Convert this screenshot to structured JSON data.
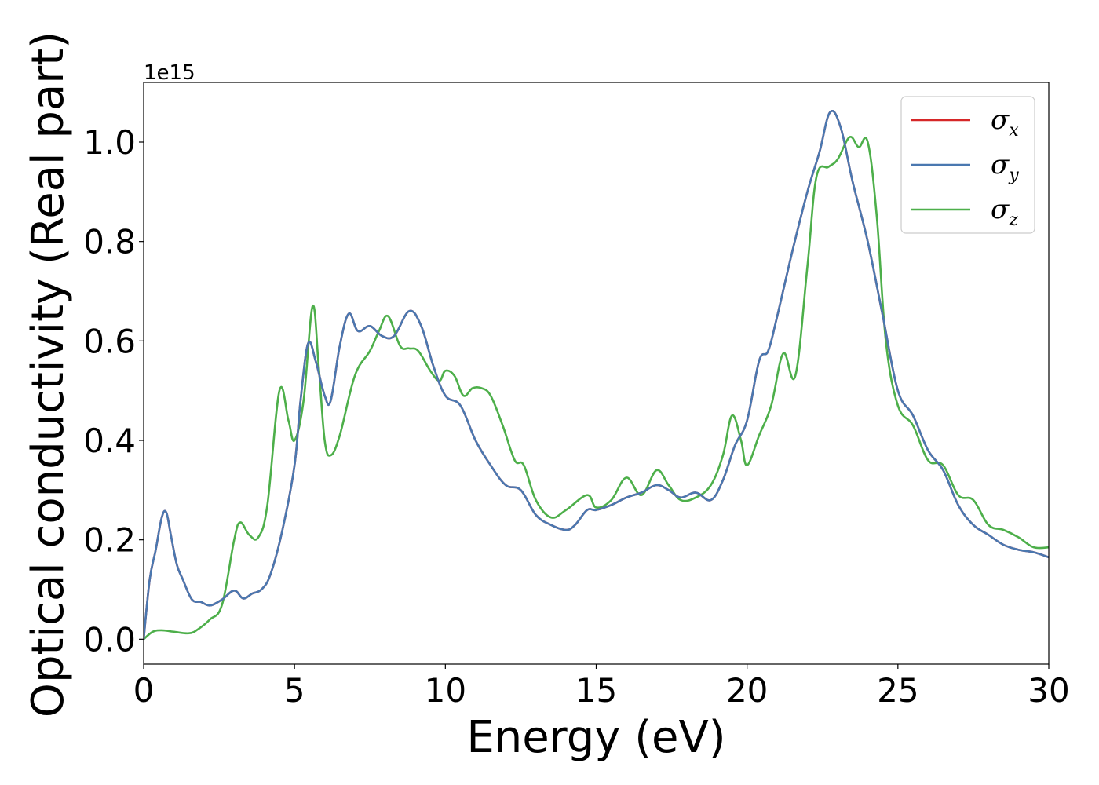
{
  "chart_data": {
    "type": "line",
    "xlabel": "Energy (eV)",
    "ylabel": "Optical conductivity (Real part)",
    "y_offset_label": "1e15",
    "xlim": [
      0,
      30
    ],
    "ylim": [
      -0.05,
      1.12
    ],
    "xticks": [
      0,
      5,
      10,
      15,
      20,
      25,
      30
    ],
    "xtick_labels": [
      "0",
      "5",
      "10",
      "15",
      "20",
      "25",
      "30"
    ],
    "yticks": [
      0.0,
      0.2,
      0.4,
      0.6,
      0.8,
      1.0
    ],
    "ytick_labels": [
      "0.0",
      "0.2",
      "0.4",
      "0.6",
      "0.8",
      "1.0"
    ],
    "grid": false,
    "legend_position": "top-right",
    "series": [
      {
        "name": "σx",
        "legend_base": "σ",
        "legend_sub": "x",
        "color": "#d62728",
        "x": [
          0,
          0.2,
          0.4,
          0.6,
          0.75,
          0.9,
          1.1,
          1.3,
          1.6,
          1.9,
          2.2,
          2.6,
          3.0,
          3.3,
          3.6,
          3.9,
          4.2,
          4.6,
          5.0,
          5.2,
          5.45,
          5.7,
          6.0,
          6.2,
          6.5,
          6.8,
          7.1,
          7.5,
          7.9,
          8.3,
          8.8,
          9.2,
          9.6,
          10.0,
          10.5,
          11.0,
          11.5,
          12.0,
          12.5,
          13.0,
          13.5,
          14.0,
          14.3,
          14.7,
          15.0,
          15.5,
          16.0,
          16.5,
          17.0,
          17.4,
          17.8,
          18.3,
          18.8,
          19.2,
          19.6,
          20.0,
          20.4,
          20.7,
          21.0,
          21.5,
          22.0,
          22.4,
          22.75,
          23.1,
          23.5,
          24.0,
          24.5,
          25.0,
          25.5,
          26.0,
          26.5,
          27.0,
          27.5,
          28.0,
          28.5,
          29.0,
          29.5,
          30.0
        ],
        "y": [
          0.0,
          0.12,
          0.18,
          0.245,
          0.255,
          0.21,
          0.15,
          0.12,
          0.08,
          0.075,
          0.068,
          0.08,
          0.098,
          0.082,
          0.092,
          0.1,
          0.13,
          0.22,
          0.35,
          0.48,
          0.595,
          0.56,
          0.49,
          0.48,
          0.59,
          0.655,
          0.62,
          0.63,
          0.61,
          0.61,
          0.66,
          0.63,
          0.55,
          0.49,
          0.47,
          0.4,
          0.35,
          0.31,
          0.3,
          0.25,
          0.23,
          0.22,
          0.23,
          0.26,
          0.26,
          0.27,
          0.285,
          0.295,
          0.31,
          0.3,
          0.285,
          0.295,
          0.28,
          0.32,
          0.39,
          0.44,
          0.56,
          0.58,
          0.65,
          0.78,
          0.9,
          0.98,
          1.06,
          1.03,
          0.92,
          0.8,
          0.65,
          0.5,
          0.45,
          0.38,
          0.34,
          0.27,
          0.23,
          0.21,
          0.19,
          0.18,
          0.175,
          0.165
        ]
      },
      {
        "name": "σy",
        "legend_base": "σ",
        "legend_sub": "y",
        "color": "#4a78b0",
        "x": [
          0,
          0.2,
          0.4,
          0.6,
          0.75,
          0.9,
          1.1,
          1.3,
          1.6,
          1.9,
          2.2,
          2.6,
          3.0,
          3.3,
          3.6,
          3.9,
          4.2,
          4.6,
          5.0,
          5.2,
          5.45,
          5.7,
          6.0,
          6.2,
          6.5,
          6.8,
          7.1,
          7.5,
          7.9,
          8.3,
          8.8,
          9.2,
          9.6,
          10.0,
          10.5,
          11.0,
          11.5,
          12.0,
          12.5,
          13.0,
          13.5,
          14.0,
          14.3,
          14.7,
          15.0,
          15.5,
          16.0,
          16.5,
          17.0,
          17.4,
          17.8,
          18.3,
          18.8,
          19.2,
          19.6,
          20.0,
          20.4,
          20.7,
          21.0,
          21.5,
          22.0,
          22.4,
          22.75,
          23.1,
          23.5,
          24.0,
          24.5,
          25.0,
          25.5,
          26.0,
          26.5,
          27.0,
          27.5,
          28.0,
          28.5,
          29.0,
          29.5,
          30.0
        ],
        "y": [
          0.0,
          0.12,
          0.18,
          0.245,
          0.255,
          0.21,
          0.15,
          0.12,
          0.08,
          0.075,
          0.068,
          0.08,
          0.098,
          0.082,
          0.092,
          0.1,
          0.13,
          0.22,
          0.35,
          0.48,
          0.595,
          0.56,
          0.49,
          0.48,
          0.59,
          0.655,
          0.62,
          0.63,
          0.61,
          0.61,
          0.66,
          0.63,
          0.55,
          0.49,
          0.47,
          0.4,
          0.35,
          0.31,
          0.3,
          0.25,
          0.23,
          0.22,
          0.23,
          0.26,
          0.26,
          0.27,
          0.285,
          0.295,
          0.31,
          0.3,
          0.285,
          0.295,
          0.28,
          0.32,
          0.39,
          0.44,
          0.56,
          0.58,
          0.65,
          0.78,
          0.9,
          0.98,
          1.06,
          1.03,
          0.92,
          0.8,
          0.65,
          0.5,
          0.45,
          0.38,
          0.34,
          0.27,
          0.23,
          0.21,
          0.19,
          0.18,
          0.175,
          0.165
        ]
      },
      {
        "name": "σz",
        "legend_base": "σ",
        "legend_sub": "z",
        "color": "#4daf4a",
        "x": [
          0,
          0.3,
          0.6,
          1.0,
          1.5,
          1.8,
          2.2,
          2.6,
          3.0,
          3.2,
          3.5,
          3.8,
          4.1,
          4.5,
          4.8,
          5.0,
          5.3,
          5.6,
          5.8,
          6.0,
          6.2,
          6.5,
          7.0,
          7.5,
          7.8,
          8.1,
          8.5,
          8.8,
          9.1,
          9.5,
          9.8,
          10.0,
          10.3,
          10.6,
          10.9,
          11.2,
          11.5,
          11.9,
          12.3,
          12.6,
          13.0,
          13.5,
          14.0,
          14.7,
          15.0,
          15.5,
          16.0,
          16.5,
          17.0,
          17.4,
          17.8,
          18.3,
          18.8,
          19.2,
          19.5,
          19.8,
          20.0,
          20.4,
          20.8,
          21.2,
          21.6,
          22.0,
          22.3,
          22.7,
          23.0,
          23.4,
          23.7,
          24.0,
          24.3,
          24.6,
          25.0,
          25.5,
          26.0,
          26.5,
          27.0,
          27.5,
          28.0,
          28.5,
          29.0,
          29.5,
          30.0
        ],
        "y": [
          0.0,
          0.015,
          0.018,
          0.015,
          0.012,
          0.02,
          0.04,
          0.07,
          0.2,
          0.235,
          0.21,
          0.205,
          0.27,
          0.5,
          0.44,
          0.4,
          0.48,
          0.67,
          0.55,
          0.4,
          0.37,
          0.41,
          0.53,
          0.58,
          0.62,
          0.65,
          0.59,
          0.585,
          0.58,
          0.54,
          0.52,
          0.54,
          0.53,
          0.49,
          0.505,
          0.505,
          0.49,
          0.43,
          0.36,
          0.35,
          0.28,
          0.245,
          0.26,
          0.29,
          0.265,
          0.28,
          0.325,
          0.29,
          0.34,
          0.31,
          0.28,
          0.285,
          0.31,
          0.37,
          0.45,
          0.4,
          0.35,
          0.41,
          0.47,
          0.575,
          0.53,
          0.75,
          0.93,
          0.95,
          0.965,
          1.01,
          0.99,
          1.0,
          0.85,
          0.6,
          0.47,
          0.43,
          0.36,
          0.35,
          0.29,
          0.28,
          0.23,
          0.22,
          0.205,
          0.185,
          0.185
        ]
      }
    ]
  }
}
